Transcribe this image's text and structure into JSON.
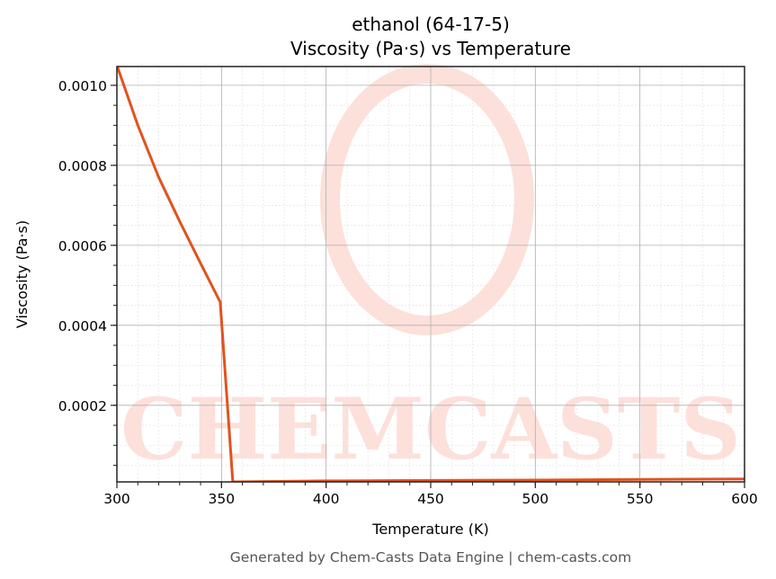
{
  "chart_data": {
    "type": "line",
    "title": "ethanol (64-17-5)",
    "subtitle": "Viscosity (Pa·s) vs Temperature",
    "xlabel": "Temperature (K)",
    "ylabel": "Viscosity (Pa·s)",
    "xlim": [
      300,
      600
    ],
    "ylim": [
      8.5e-06,
      0.001047
    ],
    "xticks": [
      300,
      350,
      400,
      450,
      500,
      550,
      600
    ],
    "xtick_labels": [
      "300",
      "350",
      "400",
      "450",
      "500",
      "550",
      "600"
    ],
    "yticks": [
      0.0002,
      0.0004,
      0.0006,
      0.0008,
      0.001
    ],
    "ytick_labels": [
      "0.0002",
      "0.0004",
      "0.0006",
      "0.0008",
      "0.0010"
    ],
    "grid": true,
    "series": [
      {
        "name": "Viscosity",
        "color": "#e0531f",
        "x": [
          300,
          310,
          320,
          330,
          340,
          349.4,
          355.4,
          400,
          450,
          500,
          550,
          600
        ],
        "y": [
          0.00105,
          0.0009,
          0.00077,
          0.00066,
          0.000555,
          0.000458,
          8.5e-06,
          1.1e-05,
          1.2e-05,
          1.3e-05,
          1.45e-05,
          1.6e-05
        ]
      }
    ]
  },
  "watermark": "CHEMCASTS",
  "footer": "Generated by Chem-Casts Data Engine | chem-casts.com"
}
